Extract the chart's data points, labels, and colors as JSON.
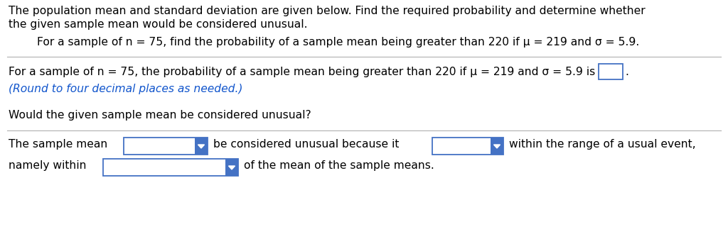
{
  "bg_color": "#ffffff",
  "text_color": "#000000",
  "blue_text_color": "#1155cc",
  "border_color": "#4472c4",
  "line1": "The population mean and standard deviation are given below. Find the required probability and determine whether",
  "line2": "the given sample mean would be considered unusual.",
  "line3": "For a sample of n = 75, find the probability of a sample mean being greater than 220 if μ = 219 and σ = 5.9.",
  "line4a": "For a sample of n = 75, the probability of a sample mean being greater than 220 if μ = 219 and σ = 5.9 is",
  "line4b": ".",
  "line5": "(Round to four decimal places as needed.)",
  "line6": "Would the given sample mean be considered unusual?",
  "line7a": "The sample mean",
  "line7b": "be considered unusual because it",
  "line7c": "within the range of a usual event,",
  "line8a": "namely within",
  "line8b": "of the mean of the sample means.",
  "font_size": 11.2
}
